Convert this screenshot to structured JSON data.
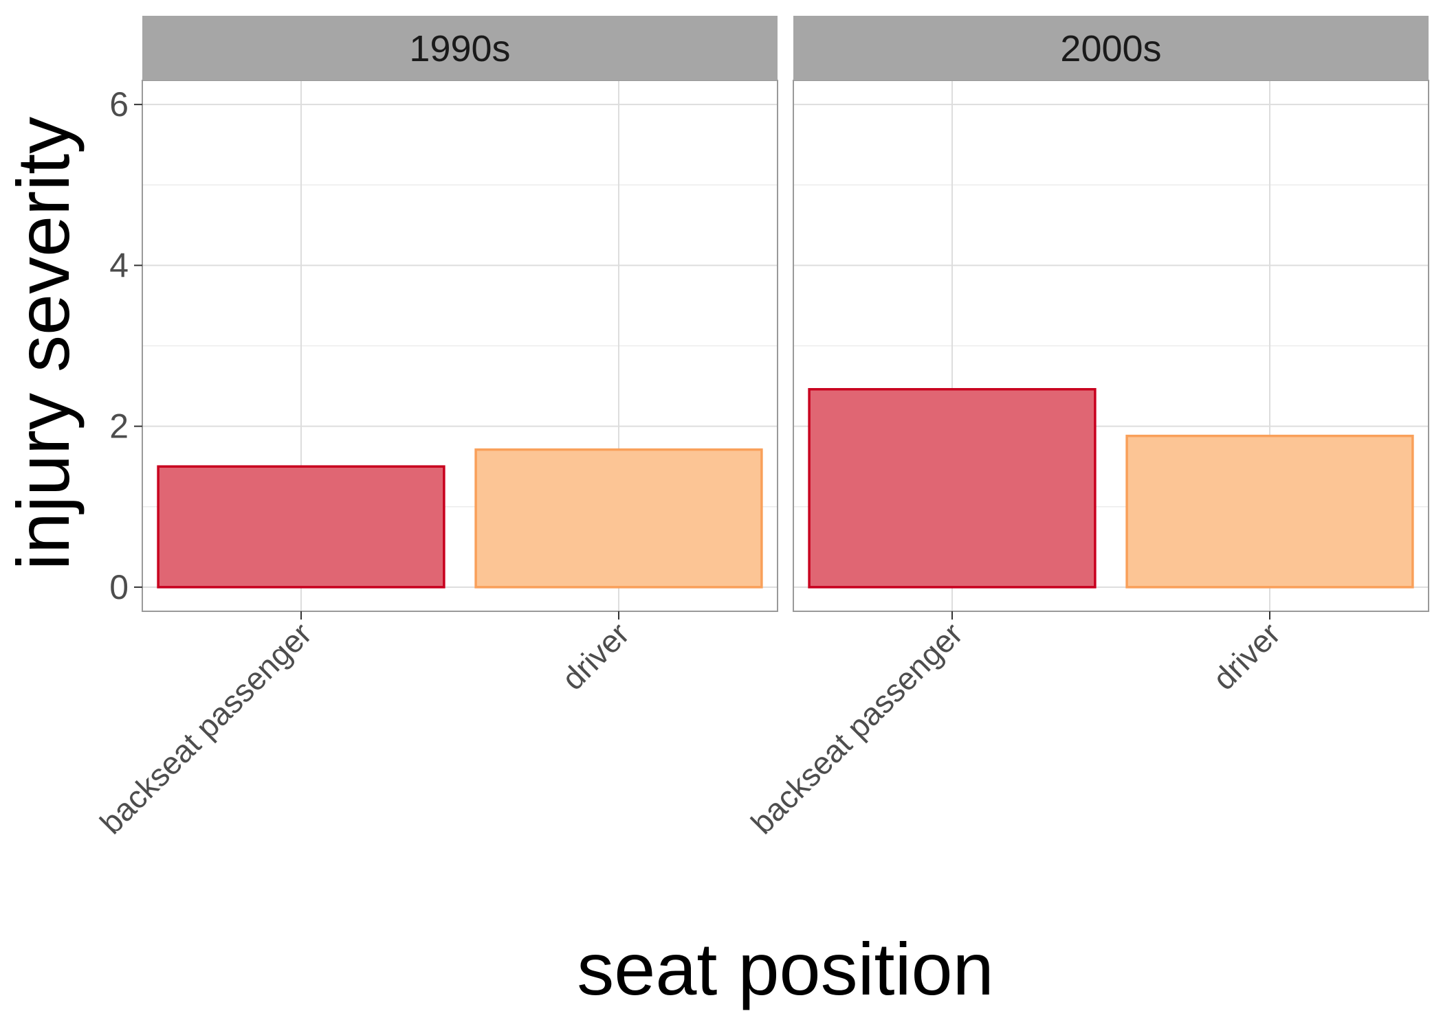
{
  "chart_data": {
    "type": "bar",
    "facets": [
      {
        "label": "1990s",
        "categories": [
          "backseat passenger",
          "driver"
        ],
        "values": [
          1.5,
          1.71
        ]
      },
      {
        "label": "2000s",
        "categories": [
          "backseat passenger",
          "driver"
        ],
        "values": [
          2.46,
          1.88
        ]
      }
    ],
    "xlabel": "seat position",
    "ylabel": "injury severity",
    "ylim": [
      -0.3,
      6.3
    ],
    "yticks": [
      0,
      2,
      4,
      6
    ],
    "y_minor_ticks": [
      1,
      3,
      5
    ],
    "grid": true,
    "legend": "none",
    "category_colors": {
      "backseat passenger": {
        "fill": "#e06673",
        "stroke": "#c8001e"
      },
      "driver": {
        "fill": "#fcc595",
        "stroke": "#f9a05a"
      }
    },
    "strip_color": "#a6a6a6",
    "grid_color": "#dddddd",
    "panel_border_color": "#999999"
  }
}
